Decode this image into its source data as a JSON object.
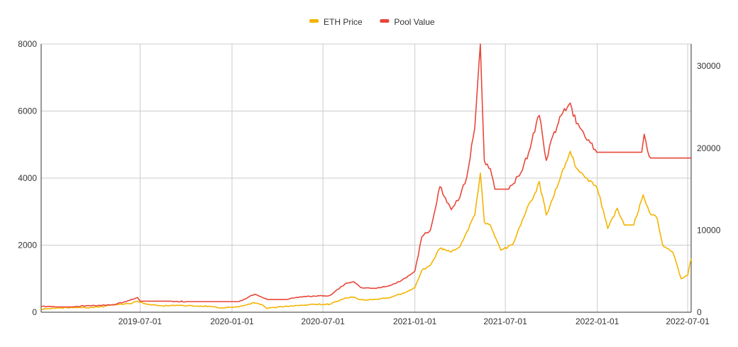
{
  "chart_data": {
    "type": "line",
    "title": "",
    "xlabel": "",
    "ylabel_left": "",
    "ylabel_right": "",
    "x_ticks": [
      "2019-07-01",
      "2020-01-01",
      "2020-07-01",
      "2021-01-01",
      "2021-07-01",
      "2022-01-01",
      "2022-07-01"
    ],
    "xlim": [
      "2018-12-15",
      "2022-07-08"
    ],
    "left_axis": {
      "ticks": [
        0,
        2000,
        4000,
        6000,
        8000
      ],
      "ylim": [
        0,
        8000
      ]
    },
    "right_axis": {
      "ticks": [
        0,
        10000,
        20000,
        30000
      ],
      "ylim": [
        0,
        32700
      ]
    },
    "grid": true,
    "legend_position": "top-center",
    "series": [
      {
        "name": "ETH Price",
        "axis": "left",
        "color": "#F4B400",
        "points": [
          [
            "2018-12-15",
            90
          ],
          [
            "2019-01-15",
            120
          ],
          [
            "2019-02-15",
            140
          ],
          [
            "2019-03-15",
            135
          ],
          [
            "2019-04-15",
            165
          ],
          [
            "2019-05-15",
            230
          ],
          [
            "2019-06-15",
            270
          ],
          [
            "2019-06-26",
            330
          ],
          [
            "2019-07-15",
            230
          ],
          [
            "2019-08-15",
            190
          ],
          [
            "2019-09-15",
            200
          ],
          [
            "2019-10-15",
            185
          ],
          [
            "2019-11-15",
            180
          ],
          [
            "2019-12-15",
            130
          ],
          [
            "2020-01-15",
            165
          ],
          [
            "2020-02-15",
            280
          ],
          [
            "2020-03-01",
            230
          ],
          [
            "2020-03-12",
            110
          ],
          [
            "2020-04-15",
            170
          ],
          [
            "2020-05-15",
            200
          ],
          [
            "2020-06-15",
            235
          ],
          [
            "2020-07-15",
            240
          ],
          [
            "2020-08-15",
            430
          ],
          [
            "2020-09-01",
            450
          ],
          [
            "2020-09-15",
            370
          ],
          [
            "2020-10-15",
            380
          ],
          [
            "2020-11-15",
            450
          ],
          [
            "2020-12-15",
            600
          ],
          [
            "2021-01-01",
            730
          ],
          [
            "2021-01-15",
            1250
          ],
          [
            "2021-02-01",
            1400
          ],
          [
            "2021-02-20",
            1900
          ],
          [
            "2021-03-15",
            1800
          ],
          [
            "2021-04-01",
            1950
          ],
          [
            "2021-04-15",
            2400
          ],
          [
            "2021-05-01",
            2900
          ],
          [
            "2021-05-12",
            4150
          ],
          [
            "2021-05-20",
            2700
          ],
          [
            "2021-06-01",
            2600
          ],
          [
            "2021-06-22",
            1850
          ],
          [
            "2021-07-15",
            2000
          ],
          [
            "2021-08-01",
            2600
          ],
          [
            "2021-08-20",
            3300
          ],
          [
            "2021-09-01",
            3600
          ],
          [
            "2021-09-07",
            3900
          ],
          [
            "2021-09-21",
            2900
          ],
          [
            "2021-10-01",
            3300
          ],
          [
            "2021-10-21",
            4100
          ],
          [
            "2021-11-08",
            4800
          ],
          [
            "2021-11-20",
            4300
          ],
          [
            "2021-12-04",
            4100
          ],
          [
            "2021-12-15",
            3900
          ],
          [
            "2022-01-01",
            3700
          ],
          [
            "2022-01-22",
            2500
          ],
          [
            "2022-02-10",
            3100
          ],
          [
            "2022-02-24",
            2600
          ],
          [
            "2022-03-15",
            2600
          ],
          [
            "2022-04-03",
            3500
          ],
          [
            "2022-04-15",
            3000
          ],
          [
            "2022-05-01",
            2800
          ],
          [
            "2022-05-12",
            2000
          ],
          [
            "2022-06-01",
            1800
          ],
          [
            "2022-06-18",
            1000
          ],
          [
            "2022-07-01",
            1100
          ],
          [
            "2022-07-08",
            1600
          ]
        ]
      },
      {
        "name": "Pool Value",
        "axis": "right",
        "color": "#E8473A",
        "points": [
          [
            "2018-12-15",
            700
          ],
          [
            "2019-01-15",
            650
          ],
          [
            "2019-02-15",
            650
          ],
          [
            "2019-03-15",
            800
          ],
          [
            "2019-04-15",
            820
          ],
          [
            "2019-05-15",
            1000
          ],
          [
            "2019-06-01",
            1300
          ],
          [
            "2019-06-26",
            1800
          ],
          [
            "2019-07-01",
            1350
          ],
          [
            "2019-09-01",
            1350
          ],
          [
            "2019-10-01",
            1300
          ],
          [
            "2019-12-15",
            1300
          ],
          [
            "2020-01-15",
            1300
          ],
          [
            "2020-02-15",
            2200
          ],
          [
            "2020-03-12",
            1550
          ],
          [
            "2020-04-15",
            1550
          ],
          [
            "2020-05-15",
            1850
          ],
          [
            "2020-06-15",
            1950
          ],
          [
            "2020-07-15",
            2050
          ],
          [
            "2020-08-15",
            3500
          ],
          [
            "2020-09-01",
            3700
          ],
          [
            "2020-09-15",
            3000
          ],
          [
            "2020-10-15",
            2900
          ],
          [
            "2020-11-15",
            3300
          ],
          [
            "2020-12-15",
            4200
          ],
          [
            "2021-01-01",
            5000
          ],
          [
            "2021-01-15",
            9200
          ],
          [
            "2021-02-01",
            10000
          ],
          [
            "2021-02-20",
            15300
          ],
          [
            "2021-03-15",
            12500
          ],
          [
            "2021-04-01",
            14000
          ],
          [
            "2021-04-15",
            16500
          ],
          [
            "2021-05-01",
            22500
          ],
          [
            "2021-05-12",
            32700
          ],
          [
            "2021-05-20",
            18500
          ],
          [
            "2021-06-01",
            17500
          ],
          [
            "2021-06-10",
            15000
          ],
          [
            "2021-07-08",
            15000
          ],
          [
            "2021-08-01",
            17000
          ],
          [
            "2021-08-20",
            20000
          ],
          [
            "2021-09-01",
            23000
          ],
          [
            "2021-09-07",
            24000
          ],
          [
            "2021-09-21",
            18500
          ],
          [
            "2021-10-01",
            21000
          ],
          [
            "2021-10-21",
            24000
          ],
          [
            "2021-11-08",
            25500
          ],
          [
            "2021-11-20",
            23000
          ],
          [
            "2021-12-04",
            22000
          ],
          [
            "2021-12-15",
            21000
          ],
          [
            "2021-12-31",
            19500
          ],
          [
            "2022-03-31",
            19500
          ],
          [
            "2022-04-05",
            21700
          ],
          [
            "2022-04-15",
            19000
          ],
          [
            "2022-04-18",
            18800
          ],
          [
            "2022-07-08",
            18800
          ]
        ]
      }
    ]
  }
}
